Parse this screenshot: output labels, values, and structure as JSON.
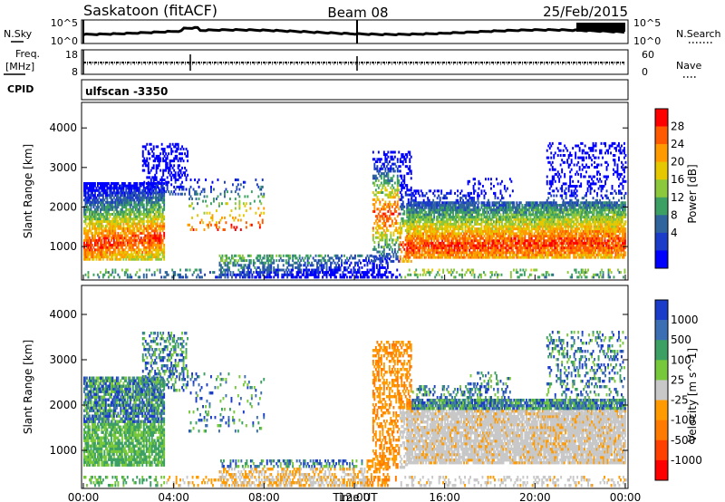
{
  "header": {
    "station": "Saskatoon (fitACF)",
    "beam": "Beam 08",
    "date": "25/Feb/2015"
  },
  "noise_panel": {
    "left_label": "N.Sky",
    "right_label": "N.Search",
    "left_ticks": [
      "10^5",
      "10^0"
    ],
    "right_ticks": [
      "10^5",
      "10^0"
    ]
  },
  "freq_panel": {
    "left_label_1": "Freq.",
    "left_label_2": "[MHz]",
    "left_ticks": [
      "18",
      "8"
    ],
    "right_label": "Nave",
    "right_ticks": [
      "60",
      "0"
    ]
  },
  "cpid_panel": {
    "label": "CPID",
    "value": "ulfscan -3350"
  },
  "chart_data": [
    {
      "type": "heatmap",
      "name": "power",
      "ylabel": "Slant Range [km]",
      "xlabel": "",
      "y_ticks": [
        1000,
        2000,
        3000,
        4000
      ],
      "ylim": [
        200,
        4600
      ],
      "x_ticks": [
        "00:00",
        "04:00",
        "08:00",
        "12:00",
        "16:00",
        "20:00",
        "00:00"
      ],
      "xlim_hours": [
        0,
        24
      ],
      "colorbar": {
        "label": "Power [dB]",
        "ticks": [
          "28",
          "24",
          "20",
          "16",
          "12",
          "8",
          "4"
        ],
        "colors": [
          "#ff0000",
          "#ff5a00",
          "#ff9a00",
          "#e6c800",
          "#8cc83c",
          "#3ca064",
          "#30649c",
          "#1a3cc8",
          "#0000ff"
        ]
      }
    },
    {
      "type": "heatmap",
      "name": "velocity",
      "ylabel": "Slant Range [km]",
      "xlabel": "Time UT",
      "y_ticks": [
        1000,
        2000,
        3000,
        4000
      ],
      "ylim": [
        200,
        4600
      ],
      "x_ticks": [
        "00:00",
        "04:00",
        "08:00",
        "12:00",
        "16:00",
        "20:00",
        "00:00"
      ],
      "xlim_hours": [
        0,
        24
      ],
      "colorbar": {
        "label": "Velocity [m s^-1]",
        "ticks": [
          "1000",
          "500",
          "100",
          "25",
          "-25",
          "-100",
          "-500",
          "-1000"
        ],
        "colors": [
          "#1a3cc8",
          "#3c6eb4",
          "#3ca064",
          "#78c83c",
          "#c8c8c8",
          "#ff9a00",
          "#ff7a00",
          "#ff4000",
          "#ff0000"
        ]
      }
    }
  ]
}
